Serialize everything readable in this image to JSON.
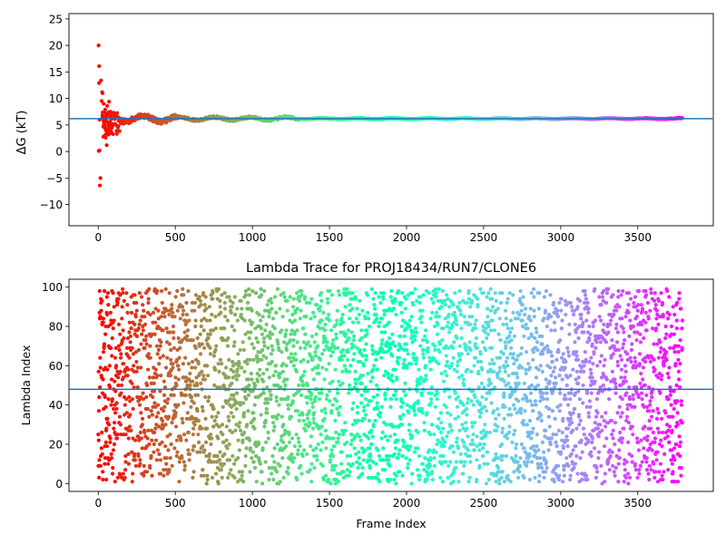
{
  "chart_data": [
    {
      "type": "scatter",
      "title": "",
      "xlabel": "",
      "ylabel": "ΔG (kT)",
      "xlim": [
        -190,
        3990
      ],
      "ylim": [
        -14,
        26
      ],
      "x_ticks": [
        0,
        500,
        1000,
        1500,
        2000,
        2500,
        3000,
        3500
      ],
      "y_ticks": [
        -10,
        -5,
        0,
        5,
        10,
        15,
        20,
        25
      ],
      "grid": false,
      "legend": "none",
      "colormap": "rainbow (red at frame 0 to violet at frame 3790)",
      "hline": {
        "y": 6.2,
        "color": "#1f77b4"
      },
      "series": [
        {
          "description": "Running ΔG estimate per frame: large scatter for the first ~150 frames, converging to about 6.2 kT",
          "x_range": [
            0,
            3790
          ],
          "early_points": [
            [
              2,
              20.0
            ],
            [
              6,
              16.1
            ],
            [
              10,
              -6.4
            ],
            [
              14,
              -5.0
            ],
            [
              3,
              0.1
            ],
            [
              8,
              0.2
            ],
            [
              5,
              12.9
            ],
            [
              9,
              6.0
            ],
            [
              18,
              13.4
            ],
            [
              22,
              9.5
            ],
            [
              25,
              11.2
            ],
            [
              28,
              11.0
            ],
            [
              30,
              7.4
            ],
            [
              33,
              2.8
            ],
            [
              35,
              9.0
            ],
            [
              40,
              6.5
            ],
            [
              42,
              4.5
            ],
            [
              45,
              7.9
            ],
            [
              48,
              2.6
            ],
            [
              52,
              3.9
            ],
            [
              55,
              1.2
            ],
            [
              58,
              8.6
            ],
            [
              62,
              6.9
            ],
            [
              65,
              4.1
            ],
            [
              70,
              9.4
            ],
            [
              75,
              5.6
            ],
            [
              80,
              7.5
            ],
            [
              85,
              3.6
            ],
            [
              90,
              6.4
            ],
            [
              95,
              4.9
            ],
            [
              100,
              7.3
            ],
            [
              110,
              5.2
            ],
            [
              120,
              6.6
            ],
            [
              130,
              4.8
            ],
            [
              140,
              6.1
            ],
            [
              150,
              5.3
            ]
          ],
          "converged_value": 6.2
        }
      ]
    },
    {
      "type": "scatter",
      "title": "Lambda Trace for PROJ18434/RUN7/CLONE6",
      "xlabel": "Frame Index",
      "ylabel": "Lambda Index",
      "xlim": [
        -190,
        3990
      ],
      "ylim": [
        -4,
        104
      ],
      "x_ticks": [
        0,
        500,
        1000,
        1500,
        2000,
        2500,
        3000,
        3500
      ],
      "y_ticks": [
        0,
        20,
        40,
        60,
        80,
        100
      ],
      "grid": false,
      "legend": "none",
      "colormap": "rainbow (red at frame 0 to violet at frame 3790)",
      "hline": {
        "y": 48,
        "color": "#1f77b4"
      },
      "series": [
        {
          "description": "Lambda index (0–99) sampled each frame, roughly uniformly spread across the full range",
          "x_range": [
            0,
            3790
          ],
          "y_range": [
            0,
            99
          ],
          "n_points": 3790
        }
      ]
    }
  ]
}
